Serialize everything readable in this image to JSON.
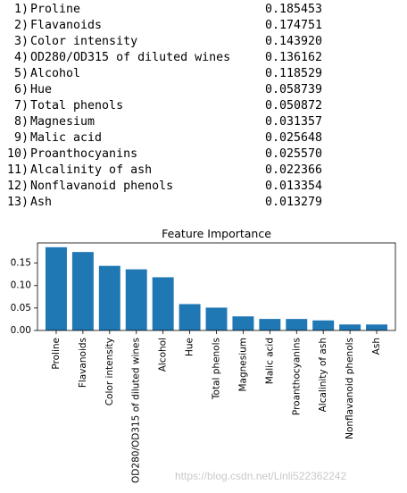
{
  "ranking": [
    {
      "rank": "1)",
      "name": "Proline",
      "value": "0.185453"
    },
    {
      "rank": "2)",
      "name": "Flavanoids",
      "value": "0.174751"
    },
    {
      "rank": "3)",
      "name": "Color intensity",
      "value": "0.143920"
    },
    {
      "rank": "4)",
      "name": "OD280/OD315 of diluted wines",
      "value": "0.136162"
    },
    {
      "rank": "5)",
      "name": "Alcohol",
      "value": "0.118529"
    },
    {
      "rank": "6)",
      "name": "Hue",
      "value": "0.058739"
    },
    {
      "rank": "7)",
      "name": "Total phenols",
      "value": "0.050872"
    },
    {
      "rank": "8)",
      "name": "Magnesium",
      "value": "0.031357"
    },
    {
      "rank": "9)",
      "name": "Malic acid",
      "value": "0.025648"
    },
    {
      "rank": "10)",
      "name": "Proanthocyanins",
      "value": "0.025570"
    },
    {
      "rank": "11)",
      "name": "Alcalinity of ash",
      "value": "0.022366"
    },
    {
      "rank": "12)",
      "name": "Nonflavanoid phenols",
      "value": "0.013354"
    },
    {
      "rank": "13)",
      "name": "Ash",
      "value": "0.013279"
    }
  ],
  "chart_data": {
    "type": "bar",
    "title": "Feature Importance",
    "categories": [
      "Proline",
      "Flavanoids",
      "Color intensity",
      "OD280/OD315 of diluted wines",
      "Alcohol",
      "Hue",
      "Total phenols",
      "Magnesium",
      "Malic acid",
      "Proanthocyanins",
      "Alcalinity of ash",
      "Nonflavanoid phenols",
      "Ash"
    ],
    "values": [
      0.185453,
      0.174751,
      0.14392,
      0.136162,
      0.118529,
      0.058739,
      0.050872,
      0.031357,
      0.025648,
      0.02557,
      0.022366,
      0.013354,
      0.013279
    ],
    "yticks": [
      "0.00",
      "0.05",
      "0.10",
      "0.15"
    ],
    "ylim": [
      0,
      0.195
    ],
    "grid": false,
    "bar_color": "#1f77b4"
  },
  "watermark": "https://blog.csdn.net/Linli522362242"
}
